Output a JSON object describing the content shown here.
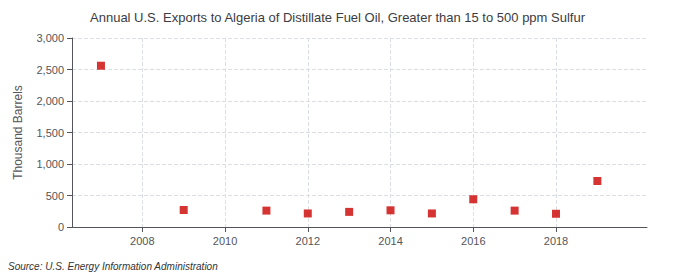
{
  "chart_data": {
    "type": "scatter",
    "title": "Annual U.S. Exports to Algeria of Distillate Fuel Oil, Greater than 15 to 500 ppm Sulfur",
    "ylabel": "Thousand Barrels",
    "source": "Source: U.S. Energy Information Administration",
    "x": [
      2007,
      2009,
      2011,
      2012,
      2013,
      2014,
      2015,
      2016,
      2017,
      2018,
      2019
    ],
    "values": [
      2560,
      270,
      260,
      215,
      240,
      265,
      215,
      440,
      260,
      210,
      730
    ],
    "xlim": [
      2006.3,
      2020.2
    ],
    "ylim": [
      0,
      3000
    ],
    "xticks": [
      2008,
      2010,
      2012,
      2014,
      2016,
      2018
    ],
    "yticks": [
      0,
      500,
      {
        "value": 1000,
        "label": "1,000"
      },
      {
        "value": 1500,
        "label": "1,500"
      },
      {
        "value": 2000,
        "label": "2,000"
      },
      {
        "value": 2500,
        "label": "2,500"
      },
      {
        "value": 3000,
        "label": "3,000"
      }
    ],
    "color": "#cc0000",
    "marker": "square",
    "grid": true
  }
}
